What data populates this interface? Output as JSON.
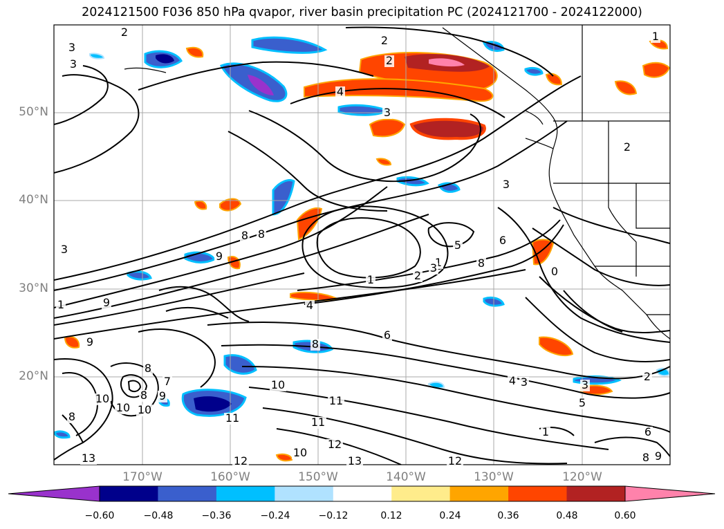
{
  "title": "2024121500 F036 850 hPa qvapor, river basin precipitation PC (2024121700 - 2024122000)",
  "axes": {
    "lat_labels": [
      "50°N",
      "40°N",
      "30°N",
      "20°N"
    ],
    "lon_labels": [
      "170°W",
      "160°W",
      "150°W",
      "140°W",
      "130°W",
      "120°W"
    ]
  },
  "colorbar": {
    "tick_labels": [
      "−0.60",
      "−0.48",
      "−0.36",
      "−0.24",
      "−0.12",
      "0.12",
      "0.24",
      "0.36",
      "0.48",
      "0.60"
    ],
    "colors": [
      "#9932cc",
      "#00008b",
      "#3a5fcd",
      "#00bfff",
      "#b0e2ff",
      "#ffffff",
      "#ffec8b",
      "#ffa500",
      "#ff4500",
      "#b22222",
      "#ff82ab"
    ]
  },
  "contour_labels": [
    "2",
    "3",
    "3",
    "2",
    "2",
    "4",
    "3",
    "2",
    "1",
    "3",
    "8",
    "8",
    "9",
    "3",
    "5",
    "6",
    "8",
    "0",
    "1",
    "2",
    "3",
    "1",
    "4",
    "9",
    "1",
    "9",
    "8",
    "8",
    "8",
    "10",
    "10",
    "10",
    "9",
    "7",
    "6",
    "8",
    "10",
    "11",
    "4",
    "3",
    "5",
    "2",
    "3",
    "11",
    "11",
    "12",
    "13",
    "12",
    "10",
    "13",
    "12",
    "1",
    "6",
    "8",
    "9"
  ]
}
